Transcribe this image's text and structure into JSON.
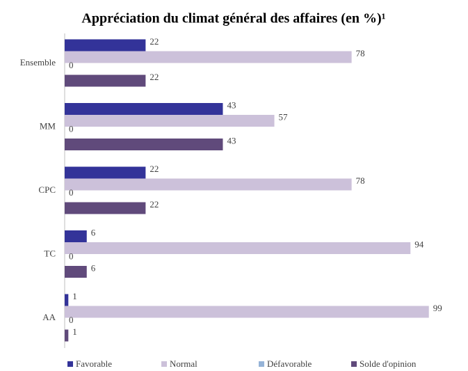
{
  "chart_data": {
    "type": "bar",
    "orientation": "horizontal",
    "title": "Appréciation du climat général des affaires (en %)¹",
    "categories": [
      "Ensemble",
      "MM",
      "CPC",
      "TC",
      "AA"
    ],
    "series": [
      {
        "name": "Favorable",
        "color": "#333399",
        "values": [
          22,
          43,
          22,
          6,
          1
        ]
      },
      {
        "name": "Normal",
        "color": "#ccc1da",
        "values": [
          78,
          57,
          78,
          94,
          99
        ]
      },
      {
        "name": "Défavorable",
        "color": "#95b3d7",
        "values": [
          0,
          0,
          0,
          0,
          0
        ]
      },
      {
        "name": "Solde d'opinion",
        "color": "#604a7b",
        "values": [
          22,
          43,
          22,
          6,
          1
        ]
      }
    ],
    "legend": "bottom"
  }
}
